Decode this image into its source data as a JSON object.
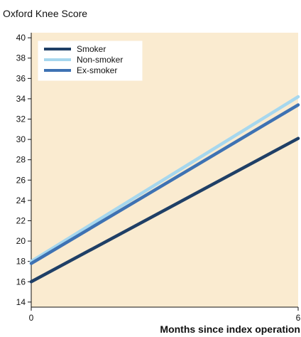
{
  "chart_data": {
    "type": "line",
    "title": "Oxford Knee Score",
    "xlabel": "Months since index operation",
    "ylabel": "",
    "xlim": [
      0,
      6
    ],
    "ylim": [
      13.5,
      40.5
    ],
    "xticks": [
      0,
      6
    ],
    "yticks": [
      14,
      16,
      18,
      20,
      22,
      24,
      26,
      28,
      30,
      32,
      34,
      36,
      38,
      40
    ],
    "grid": false,
    "legend_position": "top-left",
    "background_color": "#FAEBD0",
    "series": [
      {
        "name": "Smoker",
        "color": "#1F3F66",
        "x": [
          0,
          6
        ],
        "y": [
          16.0,
          30.1
        ]
      },
      {
        "name": "Non-smoker",
        "color": "#A6D7EE",
        "x": [
          0,
          6
        ],
        "y": [
          18.0,
          34.2
        ]
      },
      {
        "name": "Ex-smoker",
        "color": "#3E72B3",
        "x": [
          0,
          6
        ],
        "y": [
          17.8,
          33.4
        ]
      }
    ]
  }
}
